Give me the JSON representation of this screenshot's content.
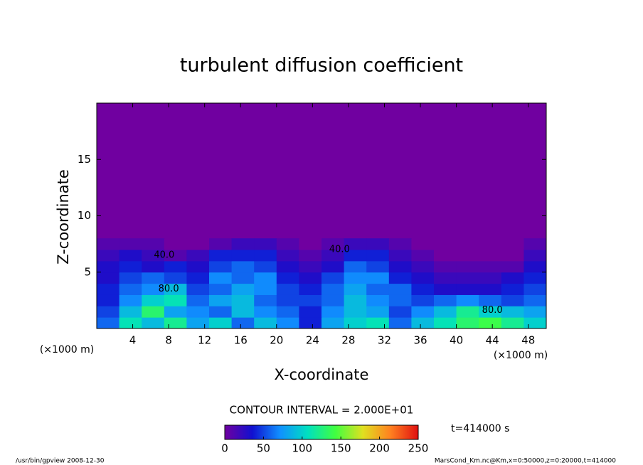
{
  "chart_data": {
    "type": "heatmap",
    "title": "turbulent diffusion coefficient",
    "xlabel": "X-coordinate",
    "ylabel": "Z-coordinate",
    "xunit": "(×1000 m)",
    "yunit": "(×1000 m)",
    "xlim": [
      0,
      50
    ],
    "ylim": [
      0,
      20
    ],
    "xticks": [
      4,
      8,
      12,
      16,
      20,
      24,
      28,
      32,
      36,
      40,
      44,
      48
    ],
    "yticks": [
      5,
      10,
      15
    ],
    "xbins": [
      0,
      2.5,
      5,
      7.5,
      10,
      12.5,
      15,
      17.5,
      20,
      22.5,
      25,
      27.5,
      30,
      32.5,
      35,
      37.5,
      40,
      42.5,
      45,
      47.5,
      50
    ],
    "zbins": [
      0,
      1,
      2,
      3,
      4,
      5,
      6,
      7,
      8
    ],
    "values": [
      [
        60,
        110,
        90,
        120,
        80,
        100,
        60,
        90,
        70,
        40,
        80,
        100,
        110,
        60,
        90,
        110,
        130,
        140,
        120,
        100
      ],
      [
        50,
        90,
        130,
        80,
        70,
        60,
        90,
        70,
        60,
        40,
        70,
        90,
        80,
        50,
        70,
        90,
        120,
        100,
        90,
        80
      ],
      [
        40,
        70,
        100,
        110,
        60,
        80,
        90,
        60,
        50,
        50,
        60,
        90,
        70,
        60,
        50,
        60,
        70,
        60,
        50,
        60
      ],
      [
        40,
        60,
        70,
        90,
        50,
        60,
        80,
        70,
        50,
        40,
        60,
        80,
        60,
        60,
        40,
        30,
        30,
        30,
        40,
        50
      ],
      [
        30,
        50,
        60,
        50,
        40,
        70,
        60,
        70,
        40,
        30,
        50,
        70,
        70,
        40,
        30,
        20,
        20,
        20,
        30,
        40
      ],
      [
        30,
        40,
        30,
        40,
        30,
        50,
        60,
        50,
        30,
        20,
        30,
        60,
        50,
        30,
        20,
        10,
        10,
        10,
        10,
        30
      ],
      [
        20,
        30,
        20,
        10,
        20,
        40,
        40,
        40,
        20,
        10,
        20,
        40,
        40,
        20,
        10,
        0,
        0,
        0,
        0,
        20
      ],
      [
        10,
        10,
        10,
        0,
        0,
        10,
        20,
        20,
        10,
        0,
        10,
        20,
        20,
        10,
        0,
        0,
        0,
        0,
        0,
        10
      ]
    ],
    "colormap": [
      "#7000a0",
      "#1010d0",
      "#1090ff",
      "#00e0c0",
      "#40ff40",
      "#e0e020",
      "#ff8020",
      "#e01010"
    ],
    "clim": [
      0,
      250
    ],
    "cticks": [
      0,
      50,
      100,
      150,
      200,
      250
    ],
    "annotations": [
      {
        "text": "40.0",
        "x": 7.5,
        "y": 6.5
      },
      {
        "text": "80.0",
        "x": 8,
        "y": 3.5
      },
      {
        "text": "40.0",
        "x": 27,
        "y": 7
      },
      {
        "text": "80.0",
        "x": 44,
        "y": 1.6
      }
    ],
    "contour_note": "CONTOUR INTERVAL = 2.000E+01",
    "time_label": "t=414000 s",
    "footer_left": "/usr/bin/gpview   2008-12-30",
    "footer_right": "MarsCond_Km.nc@Km,x=0:50000,z=0:20000,t=414000"
  }
}
